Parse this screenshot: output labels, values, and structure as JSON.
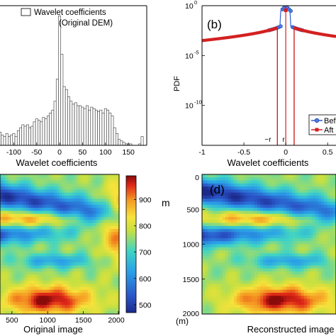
{
  "chart_data": [
    {
      "type": "bar",
      "panel": "a",
      "xlabel": "Wavelet coefficients",
      "legend": "top-right",
      "legend_entry": "Wavelet coefficients",
      "legend_note": "(Original DEM)",
      "xlim": [
        -130,
        190
      ],
      "xticks": [
        "-100",
        "-50",
        "0",
        "50",
        "100",
        "150"
      ],
      "xtick_values": [
        -100,
        -50,
        0,
        50,
        100,
        150
      ],
      "bin_width": 5,
      "bin_centers": [
        -130,
        -125,
        -120,
        -115,
        -110,
        -105,
        -100,
        -95,
        -90,
        -85,
        -80,
        -75,
        -70,
        -65,
        -60,
        -55,
        -50,
        -45,
        -40,
        -35,
        -30,
        -25,
        -20,
        -15,
        -10,
        -5,
        0,
        5,
        10,
        15,
        20,
        25,
        30,
        35,
        40,
        45,
        50,
        55,
        60,
        65,
        70,
        75,
        80,
        85,
        90,
        95,
        100,
        105,
        110,
        115,
        120,
        125,
        130,
        135,
        140,
        145,
        150,
        155,
        160,
        165,
        170,
        175,
        180
      ],
      "values": [
        9,
        7,
        6,
        8,
        6,
        7,
        8,
        6,
        10,
        12,
        14,
        13,
        14,
        12,
        13,
        16,
        18,
        17,
        16,
        19,
        18,
        20,
        22,
        24,
        30,
        45,
        88,
        62,
        40,
        38,
        33,
        30,
        28,
        29,
        27,
        27,
        26,
        25,
        27,
        24,
        26,
        25,
        24,
        23,
        24,
        22,
        25,
        24,
        22,
        20,
        12,
        8,
        4,
        3,
        2,
        1,
        1,
        1,
        0,
        0,
        0,
        1,
        6
      ],
      "ylim": [
        0,
        95
      ]
    },
    {
      "type": "line",
      "panel": "b",
      "panel_label": "(b)",
      "xlabel": "Wavelet coefficients",
      "ylabel": "PDF",
      "yscale": "log",
      "xlim": [
        -1,
        0.6
      ],
      "ylim_exponent": [
        -14,
        0
      ],
      "xticks": [
        "-1",
        "-0.5",
        "0",
        "0.5"
      ],
      "xtick_values": [
        -1,
        -0.5,
        0,
        0.5
      ],
      "yticks": [
        {
          "base": "10",
          "exp": "0",
          "value": 0
        },
        {
          "base": "10",
          "exp": "-5",
          "value": -5
        },
        {
          "base": "10",
          "exp": "-10",
          "value": -10
        }
      ],
      "legend": "bottom-right",
      "annotations": {
        "minus_r": "−r",
        "r": "r"
      },
      "threshold_r": 0.1,
      "series": [
        {
          "name": "Bef",
          "color": "#2e5bd6",
          "marker": "circle"
        },
        {
          "name": "Aft",
          "color": "#d42020",
          "marker": "square"
        }
      ]
    },
    {
      "type": "heatmap",
      "panel": "c",
      "xlabel": "Original image",
      "xticks": [
        "500",
        "1000",
        "1500",
        "2000"
      ],
      "xtick_values": [
        500,
        1000,
        1500,
        2000
      ],
      "colorbar": {
        "ticks": [
          "900",
          "800",
          "700",
          "600",
          "500"
        ],
        "tick_values": [
          900,
          800,
          700,
          600,
          500
        ],
        "range": [
          470,
          990
        ],
        "unit": "m"
      },
      "extent": [
        0,
        2000
      ]
    },
    {
      "type": "heatmap",
      "panel": "d",
      "panel_label": "(d)",
      "xlabel": "Reconstructed image",
      "yticks": [
        "0",
        "500",
        "1000",
        "1500",
        "2000"
      ],
      "ytick_values": [
        0,
        500,
        1000,
        1500,
        2000
      ],
      "unit": "(m)",
      "extent": [
        0,
        2000
      ]
    }
  ]
}
